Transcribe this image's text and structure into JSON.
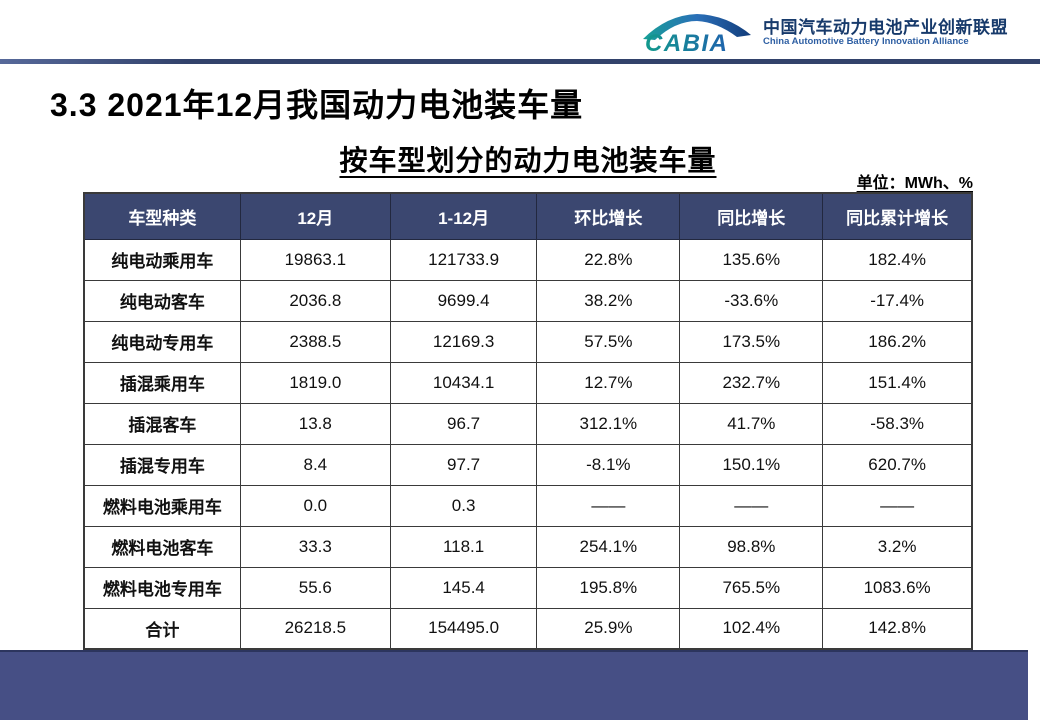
{
  "logo": {
    "abbr": "CABIA",
    "name_cn": "中国汽车动力电池产业创新联盟",
    "name_en": "China Automotive Battery Innovation Alliance"
  },
  "title": "3.3 2021年12月我国动力电池装车量",
  "subtitle": "按车型划分的动力电池装车量",
  "unit_note": "单位：MWh、%",
  "colors": {
    "header_bg": "#3b4770",
    "footer_band": "#464f85",
    "top_rule": "#32426b",
    "logo_teal": "#129a8c",
    "logo_blue": "#1f63ad"
  },
  "chart_data": {
    "type": "table",
    "title": "按车型划分的动力电池装车量",
    "unit": "MWh、%",
    "columns": [
      "车型种类",
      "12月",
      "1-12月",
      "环比增长",
      "同比增长",
      "同比累计增长"
    ],
    "rows": [
      [
        "纯电动乘用车",
        "19863.1",
        "121733.9",
        "22.8%",
        "135.6%",
        "182.4%"
      ],
      [
        "纯电动客车",
        "2036.8",
        "9699.4",
        "38.2%",
        "-33.6%",
        "-17.4%"
      ],
      [
        "纯电动专用车",
        "2388.5",
        "12169.3",
        "57.5%",
        "173.5%",
        "186.2%"
      ],
      [
        "插混乘用车",
        "1819.0",
        "10434.1",
        "12.7%",
        "232.7%",
        "151.4%"
      ],
      [
        "插混客车",
        "13.8",
        "96.7",
        "312.1%",
        "41.7%",
        "-58.3%"
      ],
      [
        "插混专用车",
        "8.4",
        "97.7",
        "-8.1%",
        "150.1%",
        "620.7%"
      ],
      [
        "燃料电池乘用车",
        "0.0",
        "0.3",
        "——",
        "——",
        "——"
      ],
      [
        "燃料电池客车",
        "33.3",
        "118.1",
        "254.1%",
        "98.8%",
        "3.2%"
      ],
      [
        "燃料电池专用车",
        "55.6",
        "145.4",
        "195.8%",
        "765.5%",
        "1083.6%"
      ],
      [
        "合计",
        "26218.5",
        "154495.0",
        "25.9%",
        "102.4%",
        "142.8%"
      ]
    ]
  }
}
